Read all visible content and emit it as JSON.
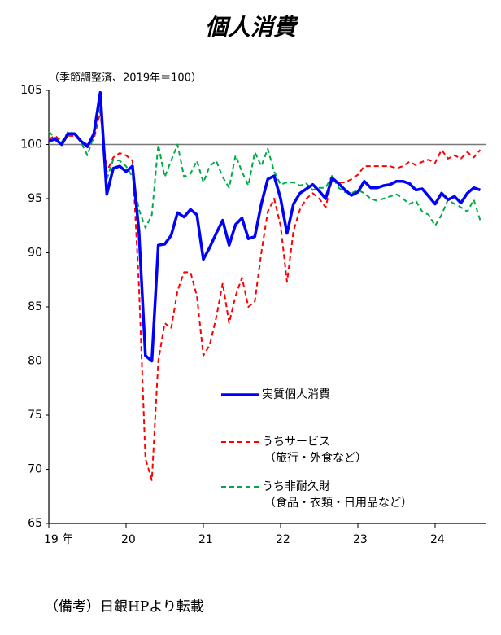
{
  "chart_data": {
    "type": "line",
    "title": "個人消費",
    "subtitle": "（季節調整済、2019年＝100）",
    "caption": "（備考）日銀HPより転載",
    "categories": [
      "19 年",
      null,
      null,
      null,
      null,
      null,
      null,
      null,
      null,
      null,
      null,
      null,
      "20",
      null,
      null,
      null,
      null,
      null,
      null,
      null,
      null,
      null,
      null,
      null,
      "21",
      null,
      null,
      null,
      null,
      null,
      null,
      null,
      null,
      null,
      null,
      null,
      "22",
      null,
      null,
      null,
      null,
      null,
      null,
      null,
      null,
      null,
      null,
      null,
      "23",
      null,
      null,
      null,
      null,
      null,
      null,
      null,
      null,
      null,
      null,
      null,
      "24",
      null,
      null,
      null,
      null,
      null,
      null,
      null
    ],
    "ylim": [
      65,
      105
    ],
    "yticks": [
      65,
      70,
      75,
      80,
      85,
      90,
      95,
      100,
      105
    ],
    "reference_line": 100,
    "series": [
      {
        "name": "実質個人消費",
        "color": "#0000ff",
        "dashed": false,
        "values": [
          100.3,
          100.5,
          100.0,
          101.0,
          101.0,
          100.3,
          99.8,
          101.0,
          104.8,
          95.4,
          97.8,
          98.0,
          97.5,
          98.0,
          92.0,
          80.5,
          80.0,
          90.7,
          90.8,
          91.6,
          93.7,
          93.3,
          94.0,
          93.5,
          89.4,
          90.5,
          91.8,
          93.0,
          90.7,
          92.6,
          93.2,
          91.3,
          91.5,
          94.5,
          96.8,
          97.1,
          95.0,
          91.8,
          94.5,
          95.5,
          95.9,
          96.3,
          95.7,
          95.0,
          96.9,
          96.4,
          95.8,
          95.3,
          95.6,
          96.6,
          96.0,
          96.0,
          96.2,
          96.3,
          96.6,
          96.6,
          96.4,
          95.8,
          95.9,
          95.2,
          94.5,
          95.5,
          94.9,
          95.2,
          94.6,
          95.5,
          96.0,
          95.8
        ]
      },
      {
        "name": "うちサービス",
        "legend_note": "（旅行・外食など）",
        "color": "#ff0000",
        "dashed": true,
        "values": [
          100.5,
          100.8,
          100.3,
          100.8,
          100.8,
          100.3,
          100.0,
          100.5,
          103.0,
          97.5,
          98.8,
          99.2,
          99.0,
          98.5,
          87.0,
          71.0,
          69.0,
          80.0,
          83.5,
          83.0,
          86.5,
          88.2,
          88.2,
          86.0,
          80.5,
          81.5,
          84.0,
          87.2,
          83.5,
          86.0,
          87.7,
          85.0,
          85.5,
          90.0,
          93.8,
          95.0,
          92.5,
          87.3,
          92.0,
          94.0,
          95.0,
          95.5,
          95.0,
          94.2,
          96.8,
          96.5,
          96.5,
          96.8,
          97.2,
          98.0,
          98.0,
          98.0,
          98.0,
          98.0,
          97.8,
          98.0,
          98.4,
          98.1,
          98.4,
          98.6,
          98.3,
          99.5,
          98.7,
          99.0,
          98.7,
          99.3,
          98.8,
          99.5
        ]
      },
      {
        "name": "うち非耐久財",
        "legend_note": "（食品・衣類・日用品など）",
        "color": "#00aa44",
        "dashed": true,
        "values": [
          101.2,
          100.6,
          100.2,
          101.2,
          101.0,
          100.2,
          99.0,
          100.8,
          103.6,
          96.8,
          98.6,
          98.5,
          98.0,
          97.0,
          94.0,
          92.3,
          93.5,
          100.0,
          97.0,
          98.5,
          100.0,
          97.0,
          97.3,
          98.5,
          96.5,
          98.0,
          98.5,
          97.0,
          96.0,
          99.0,
          97.5,
          96.2,
          99.3,
          98.0,
          99.6,
          97.5,
          96.3,
          96.5,
          96.5,
          96.2,
          96.4,
          95.8,
          96.0,
          96.0,
          97.1,
          96.0,
          95.6,
          95.5,
          95.8,
          95.5,
          95.0,
          94.8,
          95.0,
          95.2,
          95.4,
          95.0,
          94.5,
          94.8,
          93.8,
          93.5,
          92.5,
          93.5,
          94.9,
          94.5,
          94.2,
          93.8,
          94.9,
          93.0
        ]
      }
    ]
  }
}
